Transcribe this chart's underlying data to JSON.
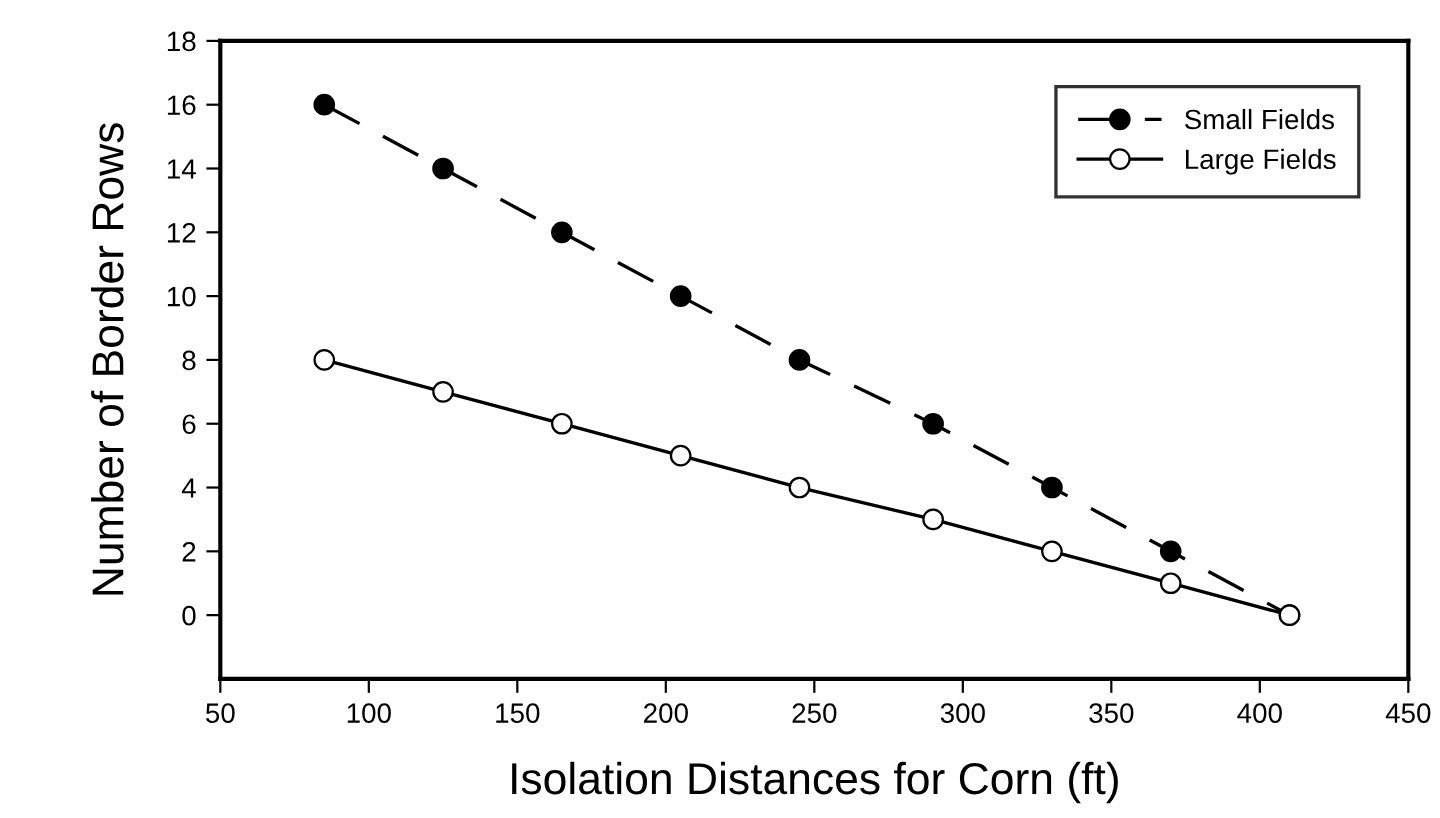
{
  "chart_data": {
    "type": "line",
    "xlabel": "Isolation Distances for Corn (ft)",
    "ylabel": "Number of Border Rows",
    "x": [
      85,
      125,
      165,
      205,
      245,
      290,
      330,
      370,
      410
    ],
    "series": [
      {
        "name": "Small Fields",
        "color": "#000000",
        "line_style": "dashed",
        "values": [
          16,
          14,
          12,
          10,
          8,
          6,
          4,
          2,
          0
        ]
      },
      {
        "name": "Large Fields",
        "color": "#000000",
        "line_style": "solid",
        "values": [
          8,
          7,
          6,
          5,
          4,
          3,
          2,
          1,
          0
        ]
      }
    ],
    "marker": "circle",
    "xlim": [
      50,
      450
    ],
    "xticks": [
      50,
      100,
      150,
      200,
      250,
      300,
      350,
      400,
      450
    ],
    "ylim": [
      -2,
      18
    ],
    "yticks": [
      0,
      2,
      4,
      6,
      8,
      10,
      12,
      14,
      16,
      18
    ],
    "grid": false,
    "legend": "top right"
  }
}
